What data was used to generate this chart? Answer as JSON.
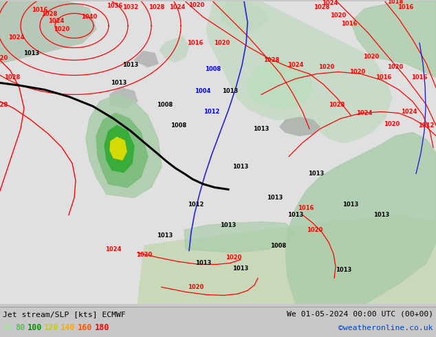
{
  "title_left": "Jet stream/SLP [kts] ECMWF",
  "title_right": "We 01-05-2024 00:00 UTC (00+00)",
  "credit": "©weatheronline.co.uk",
  "legend_values": [
    "60",
    "80",
    "100",
    "120",
    "140",
    "160",
    "180"
  ],
  "legend_colors": [
    "#aaddaa",
    "#66bb66",
    "#009900",
    "#cccc00",
    "#ffaa00",
    "#ff5500",
    "#ff0000"
  ],
  "bg_color": "#c8c8c8",
  "bottom_bg": "#d8d8d8",
  "credit_color": "#0044cc",
  "map_ocean": "#e8e8e8",
  "map_land_light": "#c8ddc8",
  "map_land_med": "#a8cca8",
  "map_land_dark": "#88bb88",
  "jet_green_light": "#bbddbb",
  "jet_green_med": "#88cc88",
  "jet_green_dark": "#44aa44",
  "jet_yellow": "#eeee00",
  "jet_orange": "#ffaa00"
}
